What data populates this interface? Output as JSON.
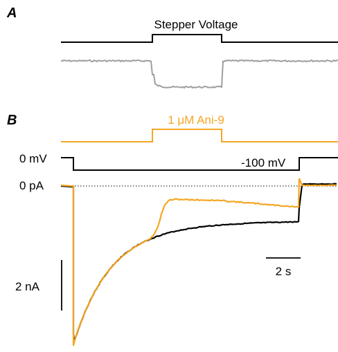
{
  "panel_a": {
    "letter": "A",
    "title": "Stepper Voltage"
  },
  "panel_b": {
    "letter": "B",
    "drug_label": "1 μM Ani-9",
    "hold_label": "0 mV",
    "step_label": "-100 mV",
    "baseline_label": "0 pA",
    "time_scale_label": "2 s",
    "current_scale_label": "2 nA"
  },
  "colors": {
    "black_trace": "#000000",
    "grey_trace": "#9E9E9E",
    "drug_trace": "#F5A623"
  }
}
